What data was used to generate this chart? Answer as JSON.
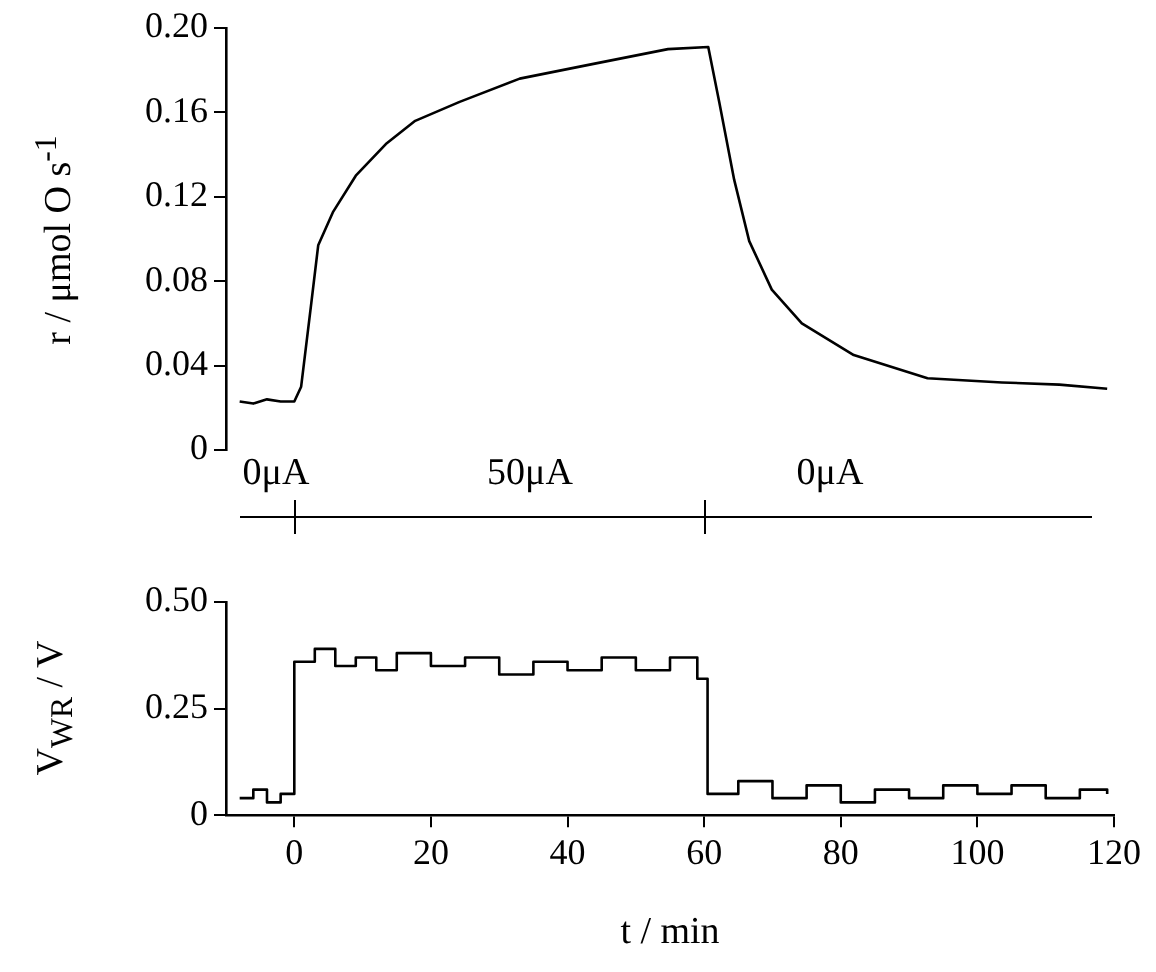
{
  "chart_data": [
    {
      "type": "line",
      "ylabel": "r / μmol O s$^{-1}$",
      "color": "#000000",
      "tick_labels": "y",
      "xlim": [
        -10,
        120
      ],
      "ylim": [
        0,
        0.2
      ],
      "yticks": [
        0,
        0.04,
        0.08,
        0.12,
        0.16,
        {
          "value": 0.2,
          "label": "0.20"
        }
      ],
      "x": [
        -8,
        -6,
        -4,
        -2,
        0,
        1,
        2.5,
        3.5,
        5.7,
        9,
        13.4,
        17.7,
        24.2,
        33,
        43.8,
        54.7,
        60.6,
        62.2,
        64.4,
        66.6,
        69.9,
        74.3,
        81.9,
        92.7,
        103.6,
        112,
        119
      ],
      "values": [
        0.023,
        0.022,
        0.024,
        0.023,
        0.023,
        0.03,
        0.07,
        0.097,
        0.113,
        0.13,
        0.145,
        0.156,
        0.165,
        0.176,
        0.183,
        0.19,
        0.191,
        0.165,
        0.128,
        0.099,
        0.076,
        0.06,
        0.045,
        0.034,
        0.032,
        0.031,
        0.029
      ]
    },
    {
      "type": "step",
      "ylabel": "V$_{WR}$ / V",
      "xlabel": "t / min",
      "color": "#000000",
      "xlim": [
        -10,
        120
      ],
      "xticks": [
        0,
        20,
        40,
        60,
        80,
        100,
        120
      ],
      "ylim": [
        0,
        0.5
      ],
      "yticks": [
        0,
        0.25,
        {
          "value": 0.5,
          "label": "0.50"
        }
      ],
      "annotations": [
        "0μA",
        "50μA",
        "0μA"
      ],
      "x": [
        -8,
        -6,
        -4,
        -2,
        0,
        3,
        6,
        9,
        12,
        15,
        20,
        25,
        30,
        35,
        40,
        45,
        50,
        55,
        59,
        60.5,
        65,
        70,
        75,
        80,
        85,
        90,
        95,
        100,
        105,
        110,
        115,
        119
      ],
      "values": [
        0.04,
        0.06,
        0.03,
        0.05,
        0.36,
        0.39,
        0.35,
        0.37,
        0.34,
        0.38,
        0.35,
        0.37,
        0.33,
        0.36,
        0.34,
        0.37,
        0.34,
        0.37,
        0.32,
        0.05,
        0.08,
        0.04,
        0.07,
        0.03,
        0.06,
        0.04,
        0.07,
        0.05,
        0.07,
        0.04,
        0.06,
        0.05
      ]
    }
  ]
}
